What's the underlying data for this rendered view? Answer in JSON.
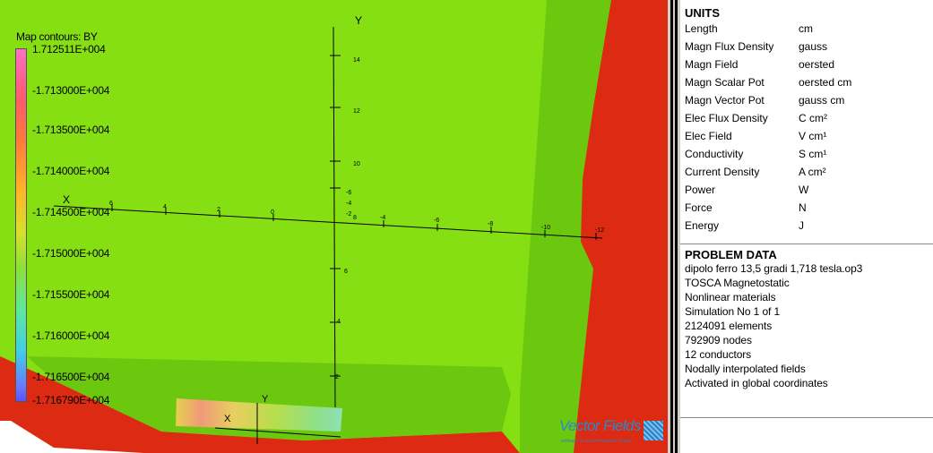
{
  "viewport": {
    "legend": {
      "title": "Map contours: BY",
      "labels": [
        "1.712511E+004",
        "-1.713000E+004",
        "-1.713500E+004",
        "-1.714000E+004",
        "-1.714500E+004",
        "-1.715000E+004",
        "-1.715500E+004",
        "-1.716000E+004",
        "-1.716500E+004",
        "-1.716790E+004"
      ]
    },
    "axes": {
      "main_y_label": "Y",
      "main_x_label": "X",
      "y_ticks": [
        "14",
        "12",
        "10",
        "8",
        "6",
        "4",
        "2"
      ],
      "x_ticks_left": [
        "6",
        "4",
        "2",
        "0"
      ],
      "x_ticks_right": [
        "-4",
        "-6",
        "-8",
        "-10",
        "-12"
      ],
      "small_y_ticks": [
        "-6",
        "-4",
        "-2"
      ],
      "inset_y_label": "Y",
      "inset_x_label": "X"
    },
    "logo": {
      "text": "Vector Fields",
      "tagline": "software for electromagnetic design"
    },
    "colors": {
      "field_green": "#86df12",
      "dark_green": "#6cc80f",
      "red": "#dd2a12"
    }
  },
  "units": {
    "title": "UNITS",
    "rows": [
      {
        "name": "Length",
        "value": "cm"
      },
      {
        "name": "Magn Flux Density",
        "value": "gauss"
      },
      {
        "name": "Magn Field",
        "value": "oersted"
      },
      {
        "name": "Magn Scalar Pot",
        "value": "oersted cm"
      },
      {
        "name": "Magn Vector Pot",
        "value": "gauss cm"
      },
      {
        "name": "Elec Flux Density",
        "value": "C cm²"
      },
      {
        "name": "Elec Field",
        "value": "V cm¹"
      },
      {
        "name": "Conductivity",
        "value": "S cm¹"
      },
      {
        "name": "Current Density",
        "value": "A cm²"
      },
      {
        "name": "Power",
        "value": "W"
      },
      {
        "name": "Force",
        "value": "N"
      },
      {
        "name": "Energy",
        "value": "J"
      }
    ]
  },
  "problem_data": {
    "title": "PROBLEM DATA",
    "lines": [
      "dipolo ferro 13,5 gradi 1,718 tesla.op3",
      "TOSCA Magnetostatic",
      "Nonlinear materials",
      "Simulation No 1 of 1",
      "2124091 elements",
      "792909 nodes",
      "12 conductors",
      "Nodally interpolated fields",
      "Activated in global coordinates"
    ]
  }
}
